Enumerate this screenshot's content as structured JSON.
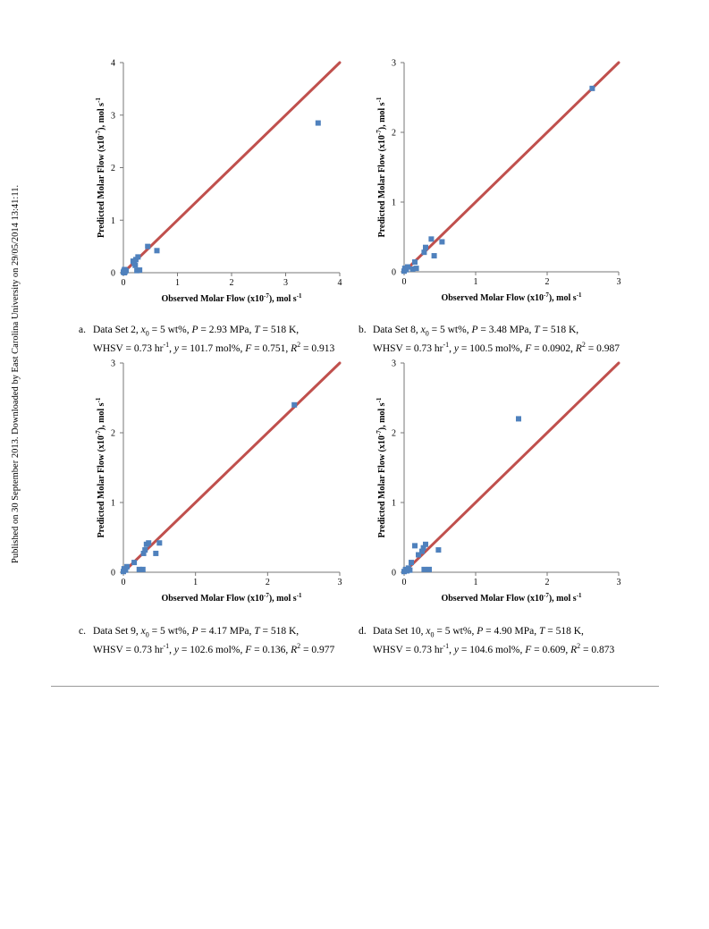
{
  "side_note": "Published on 30 September 2013. Downloaded by East Carolina University on 29/05/2014 13:41:11.",
  "captions": [
    {
      "letter": "a.",
      "line1": [
        {
          "t": "Data Set 2, "
        },
        {
          "t": "x",
          "i": true
        },
        {
          "t": "0",
          "sub": true
        },
        {
          "t": " = 5 wt%, "
        },
        {
          "t": "P",
          "i": true
        },
        {
          "t": " = 2.93 MPa, "
        },
        {
          "t": "T",
          "i": true
        },
        {
          "t": " = 518 K,"
        }
      ],
      "line2": [
        {
          "t": "WHSV = 0.73 hr"
        },
        {
          "t": "-1",
          "sup": true
        },
        {
          "t": ", "
        },
        {
          "t": "y",
          "i": true
        },
        {
          "t": " = 101.7 mol%, "
        },
        {
          "t": "F",
          "i": true
        },
        {
          "t": " = 0.751, "
        },
        {
          "t": "R",
          "i": true
        },
        {
          "t": "2",
          "sup": true
        },
        {
          "t": " = 0.913"
        }
      ]
    },
    {
      "letter": "b.",
      "line1": [
        {
          "t": "Data Set 8, "
        },
        {
          "t": "x",
          "i": true
        },
        {
          "t": "0",
          "sub": true
        },
        {
          "t": " = 5 wt%, "
        },
        {
          "t": "P",
          "i": true
        },
        {
          "t": " = 3.48 MPa, "
        },
        {
          "t": "T",
          "i": true
        },
        {
          "t": " = 518 K,"
        }
      ],
      "line2": [
        {
          "t": "WHSV = 0.73 hr"
        },
        {
          "t": "-1",
          "sup": true
        },
        {
          "t": ", "
        },
        {
          "t": "y",
          "i": true
        },
        {
          "t": " = 100.5 mol%, "
        },
        {
          "t": "F",
          "i": true
        },
        {
          "t": " = 0.0902, "
        },
        {
          "t": "R",
          "i": true
        },
        {
          "t": "2",
          "sup": true
        },
        {
          "t": " = 0.987"
        }
      ]
    },
    {
      "letter": "c.",
      "line1": [
        {
          "t": "Data Set 9, "
        },
        {
          "t": "x",
          "i": true
        },
        {
          "t": "0",
          "sub": true
        },
        {
          "t": " = 5 wt%, "
        },
        {
          "t": "P",
          "i": true
        },
        {
          "t": " = 4.17 MPa, "
        },
        {
          "t": "T",
          "i": true
        },
        {
          "t": " = 518 K,"
        }
      ],
      "line2": [
        {
          "t": "WHSV = 0.73 hr"
        },
        {
          "t": "-1",
          "sup": true
        },
        {
          "t": ", "
        },
        {
          "t": "y",
          "i": true
        },
        {
          "t": " = 102.6 mol%, "
        },
        {
          "t": "F",
          "i": true
        },
        {
          "t": " = 0.136, "
        },
        {
          "t": "R",
          "i": true
        },
        {
          "t": "2",
          "sup": true
        },
        {
          "t": " = 0.977"
        }
      ]
    },
    {
      "letter": "d.",
      "line1": [
        {
          "t": "Data Set 10, "
        },
        {
          "t": "x",
          "i": true
        },
        {
          "t": "0",
          "sub": true
        },
        {
          "t": " = 5 wt%, "
        },
        {
          "t": "P",
          "i": true
        },
        {
          "t": " = 4.90 MPa, "
        },
        {
          "t": "T",
          "i": true
        },
        {
          "t": " = 518 K,"
        }
      ],
      "line2": [
        {
          "t": "WHSV = 0.73 hr"
        },
        {
          "t": "-1",
          "sup": true
        },
        {
          "t": ", "
        },
        {
          "t": "y",
          "i": true
        },
        {
          "t": " = 104.6 mol%, "
        },
        {
          "t": "F",
          "i": true
        },
        {
          "t": " = 0.609, "
        },
        {
          "t": "R",
          "i": true
        },
        {
          "t": "2",
          "sup": true
        },
        {
          "t": " = 0.873"
        }
      ]
    }
  ],
  "chart_data": [
    {
      "type": "scatter",
      "xlabel": "Observed Molar Flow (x10-7), mol s-1",
      "ylabel": "Predicted Molar Flow (x10-7), mol s-1",
      "xlabel_runs": [
        {
          "t": "Observed Molar Flow (x10"
        },
        {
          "t": "-7",
          "sup": true
        },
        {
          "t": "), mol s"
        },
        {
          "t": "-1",
          "sup": true
        }
      ],
      "ylabel_runs": [
        {
          "t": "Predicted Molar Flow (x10"
        },
        {
          "t": "-7",
          "sup": true
        },
        {
          "t": "), mol s"
        },
        {
          "t": "-1",
          "sup": true
        }
      ],
      "xlim": [
        0,
        4
      ],
      "ylim": [
        0,
        4
      ],
      "xticks": [
        0,
        1,
        2,
        3,
        4
      ],
      "yticks": [
        0,
        1,
        2,
        3,
        4
      ],
      "grid": false,
      "marker_color": "#4f81bd",
      "line_color": "#c0504d",
      "parity_line": [
        [
          0,
          0
        ],
        [
          4,
          4
        ]
      ],
      "points": [
        [
          0.0,
          0.01
        ],
        [
          0.01,
          0.03
        ],
        [
          0.02,
          0.06
        ],
        [
          0.03,
          0.02
        ],
        [
          0.05,
          0.04
        ],
        [
          0.02,
          0.0
        ],
        [
          0.18,
          0.22
        ],
        [
          0.2,
          0.18
        ],
        [
          0.23,
          0.25
        ],
        [
          0.22,
          0.14
        ],
        [
          0.27,
          0.3
        ],
        [
          0.25,
          0.04
        ],
        [
          0.3,
          0.05
        ],
        [
          0.45,
          0.5
        ],
        [
          0.62,
          0.42
        ],
        [
          3.6,
          2.85
        ]
      ]
    },
    {
      "type": "scatter",
      "xlabel": "Observed Molar Flow (x10-7), mol s-1",
      "ylabel": "Predicted Molar Flow (x10-7), mol s-1",
      "xlabel_runs": [
        {
          "t": "Observed Molar Flow (x10"
        },
        {
          "t": "-7",
          "sup": true
        },
        {
          "t": "), mol s"
        },
        {
          "t": "-1",
          "sup": true
        }
      ],
      "ylabel_runs": [
        {
          "t": "Predicted Molar Flow (x10"
        },
        {
          "t": "-7",
          "sup": true
        },
        {
          "t": "), mol s"
        },
        {
          "t": "-1",
          "sup": true
        }
      ],
      "xlim": [
        0,
        3
      ],
      "ylim": [
        0,
        3
      ],
      "xticks": [
        0,
        1,
        2,
        3
      ],
      "yticks": [
        0,
        1,
        2,
        3
      ],
      "grid": false,
      "marker_color": "#4f81bd",
      "line_color": "#c0504d",
      "parity_line": [
        [
          0,
          0
        ],
        [
          3,
          3
        ]
      ],
      "points": [
        [
          0.0,
          0.01
        ],
        [
          0.01,
          0.05
        ],
        [
          0.03,
          0.03
        ],
        [
          0.05,
          0.07
        ],
        [
          0.12,
          0.04
        ],
        [
          0.15,
          0.14
        ],
        [
          0.17,
          0.05
        ],
        [
          0.28,
          0.28
        ],
        [
          0.3,
          0.35
        ],
        [
          0.38,
          0.47
        ],
        [
          0.42,
          0.23
        ],
        [
          0.53,
          0.43
        ],
        [
          2.63,
          2.63
        ]
      ]
    },
    {
      "type": "scatter",
      "xlabel": "Observed Molar Flow (x10-7), mol s-1",
      "ylabel": "Predicted Molar Flow (x10-7), mol s-1",
      "xlabel_runs": [
        {
          "t": "Observed Molar Flow (x10"
        },
        {
          "t": "-7",
          "sup": true
        },
        {
          "t": "), mol s"
        },
        {
          "t": "-1",
          "sup": true
        }
      ],
      "ylabel_runs": [
        {
          "t": "Predicted Molar Flow (x10"
        },
        {
          "t": "-7",
          "sup": true
        },
        {
          "t": "), mol s"
        },
        {
          "t": "-1",
          "sup": true
        }
      ],
      "xlim": [
        0,
        3
      ],
      "ylim": [
        0,
        3
      ],
      "xticks": [
        0,
        1,
        2,
        3
      ],
      "yticks": [
        0,
        1,
        2,
        3
      ],
      "grid": false,
      "marker_color": "#4f81bd",
      "line_color": "#c0504d",
      "parity_line": [
        [
          0,
          0
        ],
        [
          3,
          3
        ]
      ],
      "points": [
        [
          0.0,
          0.01
        ],
        [
          0.01,
          0.05
        ],
        [
          0.03,
          0.03
        ],
        [
          0.05,
          0.08
        ],
        [
          0.15,
          0.14
        ],
        [
          0.22,
          0.04
        ],
        [
          0.27,
          0.04
        ],
        [
          0.28,
          0.27
        ],
        [
          0.3,
          0.32
        ],
        [
          0.32,
          0.4
        ],
        [
          0.35,
          0.42
        ],
        [
          0.45,
          0.27
        ],
        [
          0.5,
          0.42
        ],
        [
          2.37,
          2.4
        ]
      ]
    },
    {
      "type": "scatter",
      "xlabel": "Observed Molar Flow (x10-7), mol s-1",
      "ylabel": "Predicted Molar Flow (x10-7), mol s-1",
      "xlabel_runs": [
        {
          "t": "Observed Molar Flow (x10"
        },
        {
          "t": "-7",
          "sup": true
        },
        {
          "t": "), mol s"
        },
        {
          "t": "-1",
          "sup": true
        }
      ],
      "ylabel_runs": [
        {
          "t": "Predicted Molar Flow (x10"
        },
        {
          "t": "-7",
          "sup": true
        },
        {
          "t": "), mol s"
        },
        {
          "t": "-1",
          "sup": true
        }
      ],
      "xlim": [
        0,
        3
      ],
      "ylim": [
        0,
        3
      ],
      "xticks": [
        0,
        1,
        2,
        3
      ],
      "yticks": [
        0,
        1,
        2,
        3
      ],
      "grid": false,
      "marker_color": "#4f81bd",
      "line_color": "#c0504d",
      "parity_line": [
        [
          0,
          0
        ],
        [
          3,
          3
        ]
      ],
      "points": [
        [
          0.0,
          0.01
        ],
        [
          0.02,
          0.04
        ],
        [
          0.04,
          0.02
        ],
        [
          0.06,
          0.06
        ],
        [
          0.08,
          0.03
        ],
        [
          0.1,
          0.14
        ],
        [
          0.15,
          0.38
        ],
        [
          0.2,
          0.25
        ],
        [
          0.25,
          0.3
        ],
        [
          0.27,
          0.35
        ],
        [
          0.3,
          0.4
        ],
        [
          0.28,
          0.04
        ],
        [
          0.35,
          0.04
        ],
        [
          0.48,
          0.32
        ],
        [
          1.6,
          2.2
        ]
      ]
    }
  ]
}
